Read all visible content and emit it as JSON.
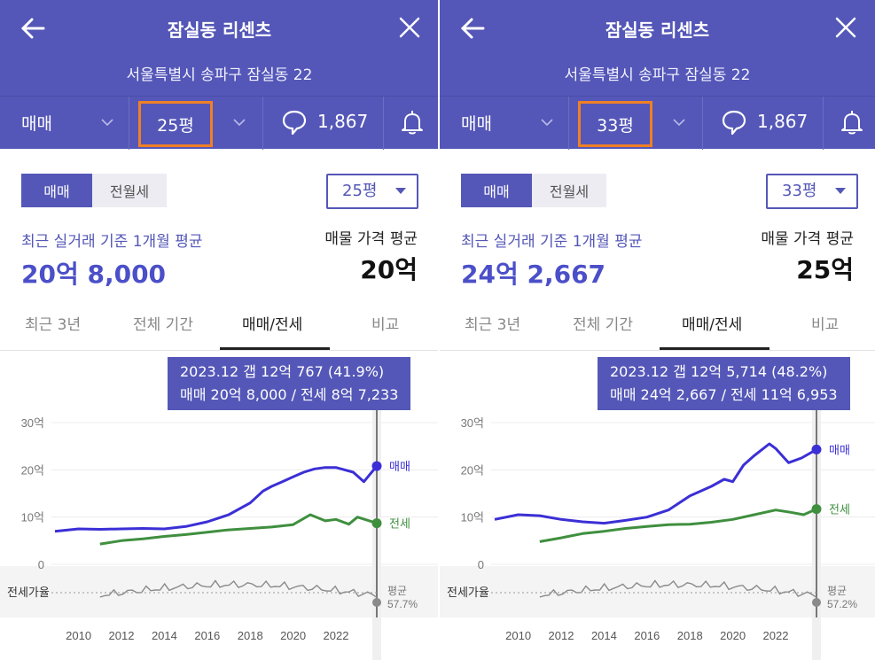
{
  "panels": [
    {
      "title": "잠실동 리센츠",
      "address": "서울특별시 송파구 잠실동 22",
      "toolbar": {
        "trade_type": "매매",
        "size": "25평",
        "comment_count": "1,867"
      },
      "segment": {
        "active": "매매",
        "inactive": "전월세"
      },
      "size_select": "25평",
      "recent": {
        "label": "최근 실거래 기준 1개월 평균",
        "price": "20억 8,000"
      },
      "ask": {
        "label": "매물 가격 평균",
        "price": "20억"
      },
      "tabs": [
        {
          "label": "최근 3년"
        },
        {
          "label": "전체 기간"
        },
        {
          "label": "매매/전세"
        },
        {
          "label": "비교"
        }
      ],
      "active_tab": 2,
      "tooltip": {
        "line1": "2023.12  갭 12억 767 (41.9%)",
        "line2": "매매 20억 8,000 / 전세 8억 7,233"
      },
      "chart_data": {
        "type": "line",
        "y_ticks": [
          "30억",
          "20억",
          "10억",
          "0"
        ],
        "ylim": [
          0,
          30
        ],
        "x_ticks": [
          "2010",
          "2012",
          "2014",
          "2016",
          "2018",
          "2020",
          "2022"
        ],
        "series": [
          {
            "name": "매매",
            "color": "#3b2fd6",
            "x": [
              2008.9,
              2010,
              2011,
              2012,
              2013,
              2014,
              2015,
              2016,
              2017,
              2018,
              2018.6,
              2019,
              2019.5,
              2020,
              2020.5,
              2021,
              2021.5,
              2022,
              2022.8,
              2023.3,
              2023.9
            ],
            "values": [
              7,
              7.5,
              7.4,
              7.5,
              7.6,
              7.5,
              8.0,
              9.0,
              10.5,
              13,
              15.5,
              16.5,
              17.5,
              18.5,
              19.5,
              20.2,
              20.5,
              20.5,
              19.5,
              17.5,
              20.8
            ]
          },
          {
            "name": "전세",
            "color": "#3f8f3f",
            "x": [
              2011,
              2012,
              2013,
              2014,
              2015,
              2016,
              2017,
              2018,
              2019,
              2020,
              2020.8,
              2021.5,
              2022,
              2022.6,
              2023,
              2023.9
            ],
            "values": [
              4.3,
              5.0,
              5.4,
              5.9,
              6.3,
              6.8,
              7.3,
              7.6,
              7.9,
              8.4,
              10.5,
              9.2,
              9.5,
              8.5,
              10.0,
              8.7
            ]
          }
        ],
        "ratio": {
          "label": "전세가율",
          "avg_label": "평균",
          "avg_value": "57.7%"
        },
        "end_labels": [
          "매매",
          "전세"
        ]
      }
    },
    {
      "title": "잠실동 리센츠",
      "address": "서울특별시 송파구 잠실동 22",
      "toolbar": {
        "trade_type": "매매",
        "size": "33평",
        "comment_count": "1,867"
      },
      "segment": {
        "active": "매매",
        "inactive": "전월세"
      },
      "size_select": "33평",
      "recent": {
        "label": "최근 실거래 기준 1개월 평균",
        "price": "24억 2,667"
      },
      "ask": {
        "label": "매물 가격 평균",
        "price": "25억"
      },
      "tabs": [
        {
          "label": "최근 3년"
        },
        {
          "label": "전체 기간"
        },
        {
          "label": "매매/전세"
        },
        {
          "label": "비교"
        }
      ],
      "active_tab": 2,
      "tooltip": {
        "line1": "2023.12  갭 12억 5,714 (48.2%)",
        "line2": "매매 24억 2,667 / 전세 11억 6,953"
      },
      "chart_data": {
        "type": "line",
        "y_ticks": [
          "30억",
          "20억",
          "10억",
          "0"
        ],
        "ylim": [
          0,
          30
        ],
        "x_ticks": [
          "2010",
          "2012",
          "2014",
          "2016",
          "2018",
          "2020",
          "2022"
        ],
        "series": [
          {
            "name": "매매",
            "color": "#3b2fd6",
            "x": [
              2008.9,
              2010,
              2011,
              2012,
              2013,
              2014,
              2015,
              2016,
              2017,
              2018,
              2019,
              2019.6,
              2020,
              2020.5,
              2021,
              2021.7,
              2022,
              2022.6,
              2023.2,
              2023.9
            ],
            "values": [
              9.5,
              10.5,
              10.3,
              9.5,
              9.0,
              8.7,
              9.3,
              10.0,
              11.5,
              14.5,
              16.5,
              18.0,
              17.5,
              21.0,
              23.0,
              25.5,
              24.5,
              21.5,
              22.5,
              24.3
            ]
          },
          {
            "name": "전세",
            "color": "#3f8f3f",
            "x": [
              2011,
              2012,
              2013,
              2014,
              2015,
              2016,
              2017,
              2018,
              2019,
              2020,
              2021,
              2022,
              2022.7,
              2023.3,
              2023.9
            ],
            "values": [
              4.8,
              5.6,
              6.5,
              7.0,
              7.6,
              8.0,
              8.4,
              8.5,
              8.9,
              9.5,
              10.5,
              11.5,
              11.0,
              10.5,
              11.7
            ]
          }
        ],
        "ratio": {
          "label": "전세가율",
          "avg_label": "평균",
          "avg_value": "57.2%"
        },
        "end_labels": [
          "매매",
          "전세"
        ]
      }
    }
  ]
}
